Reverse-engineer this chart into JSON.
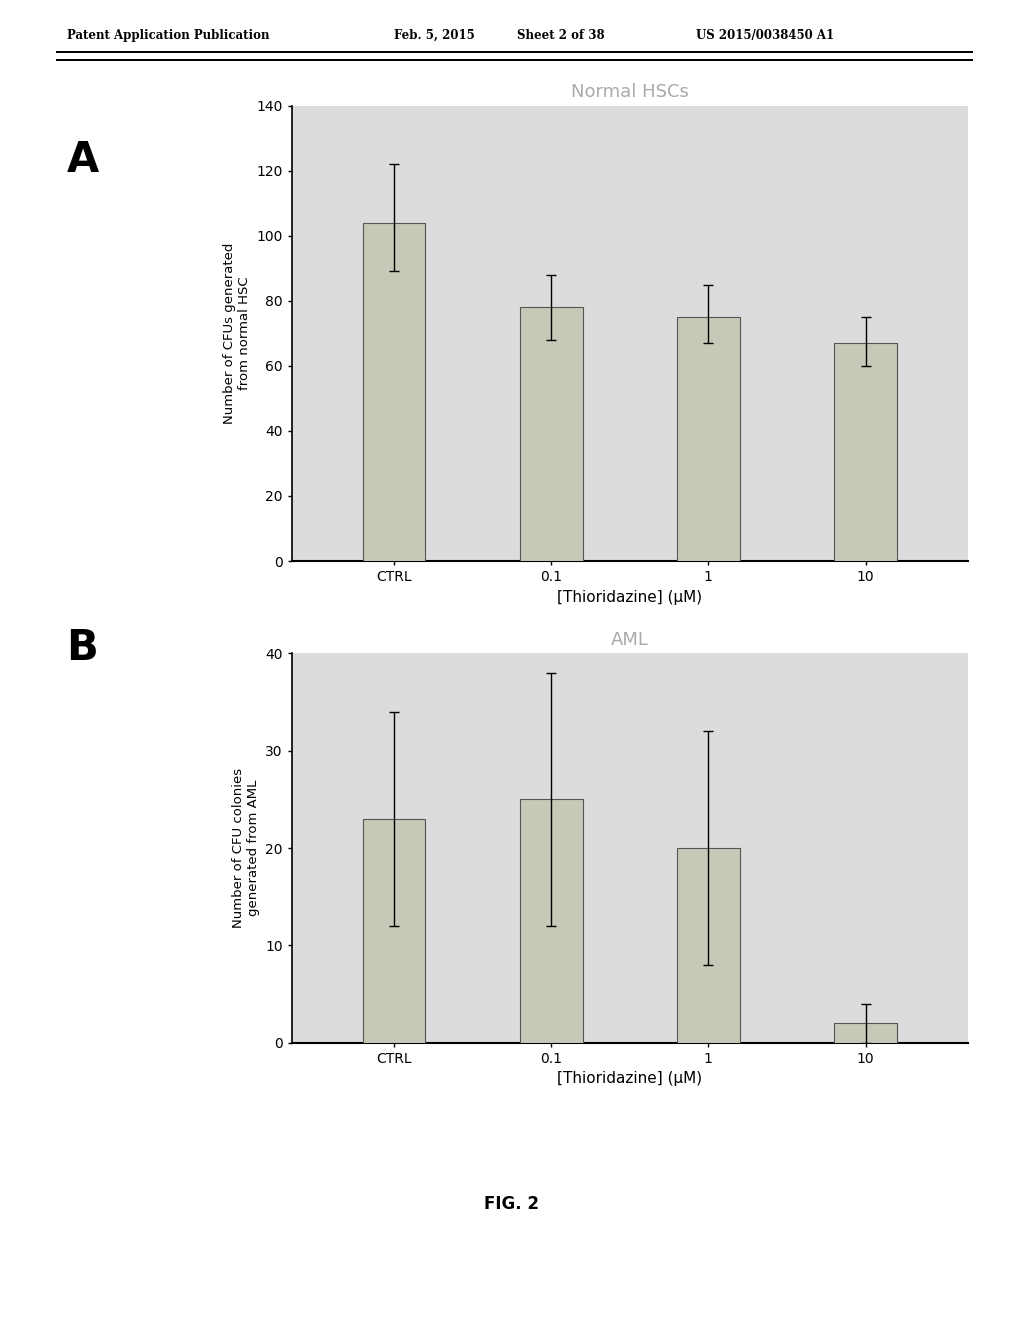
{
  "panel_A": {
    "title": "Normal HSCs",
    "categories": [
      "CTRL",
      "0.1",
      "1",
      "10"
    ],
    "values": [
      104,
      78,
      75,
      67
    ],
    "errors_up": [
      18,
      10,
      10,
      8
    ],
    "errors_down": [
      15,
      10,
      8,
      7
    ],
    "ylabel": "Number of CFUs generated\nfrom normal HSC",
    "xlabel": "[Thioridazine] (μM)",
    "ylim": [
      0,
      140
    ],
    "yticks": [
      0,
      20,
      40,
      60,
      80,
      100,
      120,
      140
    ]
  },
  "panel_B": {
    "title": "AML",
    "categories": [
      "CTRL",
      "0.1",
      "1",
      "10"
    ],
    "values": [
      23,
      25,
      20,
      2
    ],
    "errors_up": [
      11,
      13,
      12,
      2
    ],
    "errors_down": [
      11,
      13,
      12,
      2
    ],
    "ylabel": "Number of CFU colonies\ngenerated from AML",
    "xlabel": "[Thioridazine] (μM)",
    "ylim": [
      0,
      40
    ],
    "yticks": [
      0,
      10,
      20,
      30,
      40
    ]
  },
  "bar_color": "#c8c8b8",
  "bar_edge_color": "#555555",
  "background_color": "#ffffff",
  "plot_bg_color": "#dcdcdc",
  "header_text": "Patent Application Publication",
  "header_date": "Feb. 5, 2015",
  "header_sheet": "Sheet 2 of 38",
  "header_patent": "US 2015/0038450 A1",
  "fig_label": "FIG. 2",
  "label_A": "A",
  "label_B": "B",
  "title_color": "#aaaaaa"
}
